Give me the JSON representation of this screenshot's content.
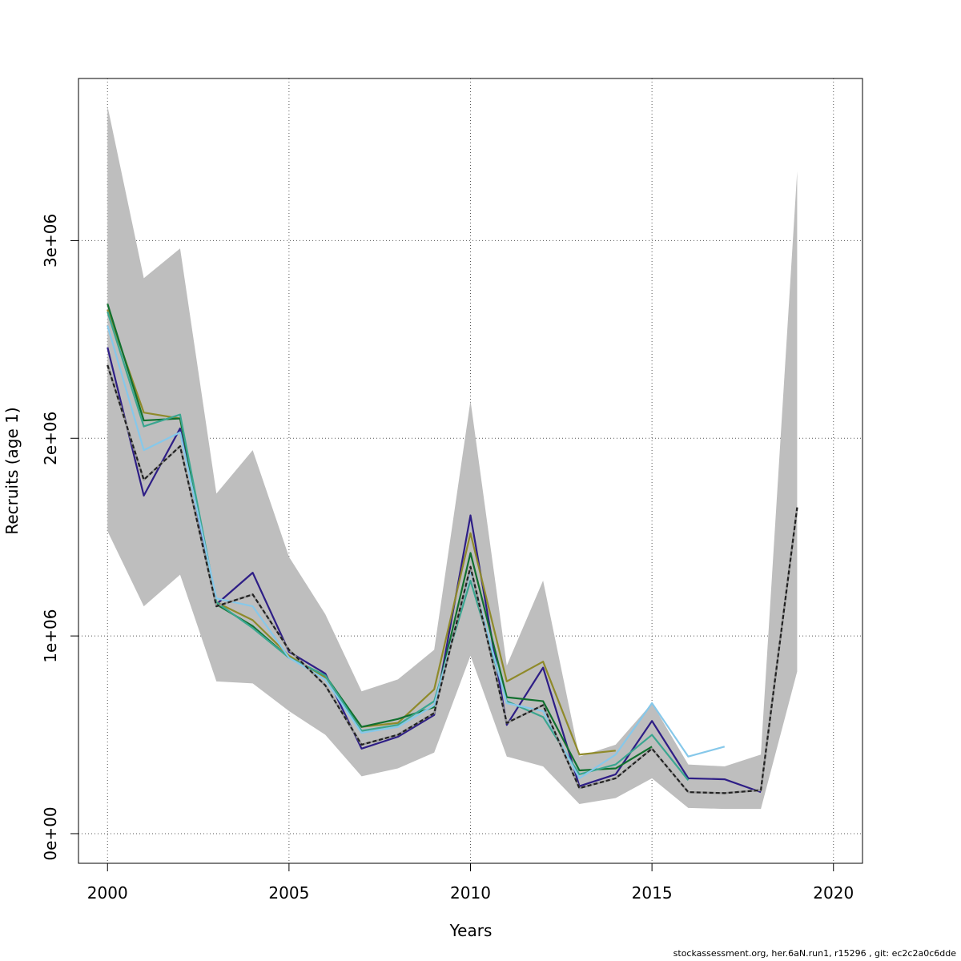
{
  "chart_data": {
    "type": "line",
    "xlabel": "Years",
    "ylabel": "Recruits (age 1)",
    "xlim": [
      1999.2,
      2020.8
    ],
    "ylim": [
      -150000,
      3820000
    ],
    "xticks": [
      2000,
      2005,
      2010,
      2015,
      2020
    ],
    "yticks": [
      0,
      1000000,
      2000000,
      3000000
    ],
    "ytick_labels": [
      "0e+00",
      "1e+06",
      "2e+06",
      "3e+06"
    ],
    "grid": true,
    "colors": {
      "band": "#bebebe",
      "base": "#222222",
      "navy": "#2e1e86",
      "olive": "#8f8a2a",
      "green": "#11702f",
      "teal": "#3aa690",
      "sky": "#86c8ea"
    },
    "band": {
      "x": [
        2000,
        2001,
        2002,
        2003,
        2004,
        2005,
        2006,
        2007,
        2008,
        2009,
        2010,
        2011,
        2012,
        2013,
        2014,
        2015,
        2016,
        2017,
        2018,
        2019
      ],
      "upper": [
        3680000,
        2810000,
        2960000,
        1720000,
        1940000,
        1400000,
        1110000,
        720000,
        780000,
        930000,
        2190000,
        850000,
        1280000,
        390000,
        450000,
        660000,
        350000,
        340000,
        400000,
        3350000
      ],
      "lower": [
        1530000,
        1150000,
        1310000,
        770000,
        760000,
        620000,
        500000,
        290000,
        330000,
        410000,
        900000,
        390000,
        340000,
        150000,
        180000,
        280000,
        130000,
        125000,
        125000,
        820000
      ]
    },
    "series": [
      {
        "color_key": "base",
        "dashed": true,
        "x": [
          2000,
          2001,
          2002,
          2003,
          2004,
          2005,
          2006,
          2007,
          2008,
          2009,
          2010,
          2011,
          2012,
          2013,
          2014,
          2015,
          2016,
          2017,
          2018,
          2019
        ],
        "values": [
          2370000,
          1790000,
          1960000,
          1150000,
          1210000,
          930000,
          750000,
          450000,
          500000,
          610000,
          1350000,
          560000,
          650000,
          230000,
          280000,
          430000,
          210000,
          205000,
          220000,
          1650000
        ]
      },
      {
        "color_key": "navy",
        "x": [
          2000,
          2001,
          2002,
          2003,
          2004,
          2005,
          2006,
          2007,
          2008,
          2009,
          2010,
          2011,
          2012,
          2013,
          2014,
          2015,
          2016,
          2017,
          2018
        ],
        "values": [
          2460000,
          1710000,
          2050000,
          1160000,
          1320000,
          920000,
          810000,
          430000,
          490000,
          600000,
          1610000,
          550000,
          840000,
          240000,
          300000,
          570000,
          280000,
          275000,
          210000
        ]
      },
      {
        "color_key": "olive",
        "x": [
          2000,
          2001,
          2002,
          2003,
          2004,
          2005,
          2006,
          2007,
          2008,
          2009,
          2010,
          2011,
          2012,
          2013,
          2014
        ],
        "values": [
          2650000,
          2130000,
          2100000,
          1170000,
          1080000,
          900000,
          790000,
          540000,
          560000,
          730000,
          1520000,
          770000,
          870000,
          400000,
          420000
        ]
      },
      {
        "color_key": "green",
        "x": [
          2000,
          2001,
          2002,
          2003,
          2004,
          2005,
          2006,
          2007,
          2008,
          2009,
          2010,
          2011,
          2012,
          2013,
          2014,
          2015
        ],
        "values": [
          2680000,
          2090000,
          2100000,
          1160000,
          1050000,
          890000,
          800000,
          540000,
          580000,
          640000,
          1420000,
          690000,
          670000,
          320000,
          330000,
          440000
        ]
      },
      {
        "color_key": "teal",
        "x": [
          2000,
          2001,
          2002,
          2003,
          2004,
          2005,
          2006,
          2007,
          2008,
          2009,
          2010,
          2011,
          2012,
          2013,
          2014,
          2015,
          2016
        ],
        "values": [
          2640000,
          2060000,
          2120000,
          1170000,
          1040000,
          890000,
          800000,
          520000,
          550000,
          670000,
          1280000,
          670000,
          590000,
          300000,
          350000,
          500000,
          270000
        ]
      },
      {
        "color_key": "sky",
        "x": [
          2000,
          2001,
          2002,
          2003,
          2004,
          2005,
          2006,
          2007,
          2008,
          2009,
          2010,
          2011,
          2012,
          2013,
          2014,
          2015,
          2016,
          2017
        ],
        "values": [
          2570000,
          1940000,
          2030000,
          1190000,
          1150000,
          890000,
          780000,
          510000,
          540000,
          650000,
          1330000,
          660000,
          620000,
          280000,
          400000,
          660000,
          390000,
          440000
        ]
      }
    ]
  },
  "footer": "stockassessment.org, her.6aN.run1, r15296 , git: ec2c2a0c6dde"
}
